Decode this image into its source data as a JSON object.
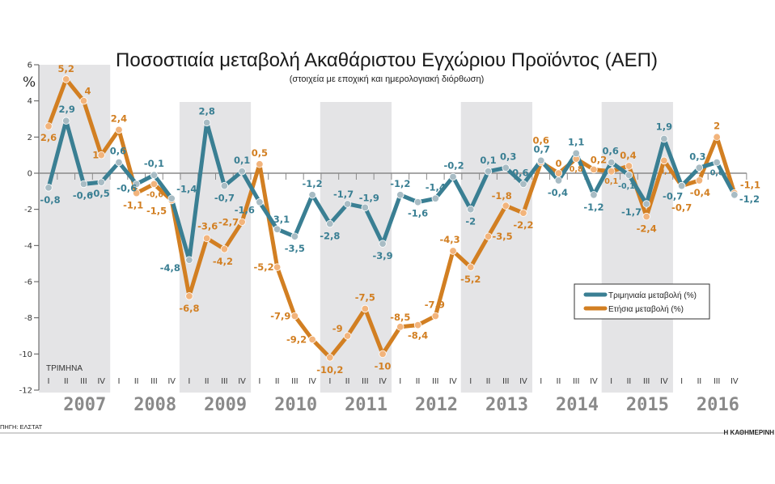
{
  "chart_data": {
    "type": "line",
    "title": "Ποσοστιαία μεταβολή Ακαθάριστου Εγχώριου Προϊόντος (ΑΕΠ)",
    "subtitle": "(στοιχεία με εποχική και ημερολογιακή διόρθωση)",
    "ylabel": "%",
    "ylim": [
      -12,
      6
    ],
    "yticks": [
      "6",
      "4",
      "2",
      "0",
      "-2",
      "-4",
      "-6",
      "-8",
      "-10",
      "-12"
    ],
    "ytick_values": [
      6,
      4,
      2,
      0,
      -2,
      -4,
      -6,
      -8,
      -10,
      -12
    ],
    "quarter_axis_label": "ΤΡΙΜΗΝΑ",
    "quarter_labels": [
      "I",
      "II",
      "III",
      "IV"
    ],
    "years": [
      "2007",
      "2008",
      "2009",
      "2010",
      "2011",
      "2012",
      "2013",
      "2014",
      "2015",
      "2016"
    ],
    "shaded_years": [
      "2007",
      "2009",
      "2011",
      "2013",
      "2015"
    ],
    "legend_position": "right",
    "series": [
      {
        "name": "Τριμηνιαία μεταβολή (%)",
        "color": "#3a7f93",
        "marker_color": "#a8bcc4",
        "values": [
          -0.8,
          2.9,
          -0.6,
          -0.5,
          0.6,
          -0.6,
          -0.1,
          -1.4,
          -4.8,
          2.8,
          -0.7,
          0.1,
          -1.6,
          -3.1,
          -3.5,
          -1.2,
          -2.8,
          -1.7,
          -1.9,
          -3.9,
          -1.2,
          -1.6,
          -1.4,
          -0.2,
          -2,
          0.1,
          0.3,
          -0.6,
          0.7,
          -0.4,
          1.1,
          -1.2,
          0.6,
          -0.1,
          -1.7,
          1.9,
          -0.7,
          0.3,
          0.6,
          -1.2
        ],
        "labels": [
          "-0,8",
          "2,9",
          "-0,6",
          "-0,5",
          "0,6",
          "-0,6",
          "-0,1",
          "-1,4",
          "-4,8",
          "2,8",
          "-0,7",
          "0,1",
          "-1,6",
          "-3,1",
          "-3,5",
          "-1,2",
          "-2,8",
          "-1,7",
          "-1,9",
          "-3,9",
          "-1,2",
          "-1,6",
          "-1,4",
          "-0,2",
          "-2",
          "0,1",
          "0,3",
          "-0,6",
          "0,7",
          "-0,4",
          "1,1",
          "-1,2",
          "0,6",
          "-0,1",
          "-1,7",
          "1,9",
          "-0,7",
          "0,3",
          "0,6",
          "-1,2"
        ]
      },
      {
        "name": "Ετήσια μεταβολή (%)",
        "color": "#d27f22",
        "marker_color": "#f2b47c",
        "values": [
          2.6,
          5.2,
          4,
          1,
          2.4,
          -1.1,
          -0.6,
          -1.5,
          -6.8,
          -3.6,
          -4.2,
          -2.7,
          0.5,
          -5.2,
          -7.9,
          -9.2,
          -10.2,
          -9,
          -7.5,
          -10,
          -8.5,
          -8.4,
          -7.9,
          -4.3,
          -5.2,
          -3.5,
          -1.8,
          -2.2,
          0.6,
          0,
          0.8,
          0.2,
          0.1,
          0.4,
          -2.4,
          0.7,
          -0.7,
          -0.4,
          2,
          -1.1
        ],
        "labels": [
          "2,6",
          "5,2",
          "4",
          "1",
          "2,4",
          "-1,1",
          "-0,6",
          "-1,5",
          "-6,8",
          "-3,6",
          "-4,2",
          "-2,7",
          "0,5",
          "-5,2",
          "-7,9",
          "-9,2",
          "-10,2",
          "-9",
          "-7,5",
          "-10",
          "-8,5",
          "-8,4",
          "-7,9",
          "-4,3",
          "-5,2",
          "-3,5",
          "-1,8",
          "-2,2",
          "0,6",
          "0",
          "0,8",
          "0,2",
          "0,1",
          "0,4",
          "-2,4",
          "0,7",
          "-0,7",
          "-0,4",
          "2",
          "-1,1"
        ]
      }
    ]
  },
  "footer": {
    "source": "ΠΗΓΗ: ΕΛΣΤΑΤ",
    "publisher": "Η ΚΑΘΗΜΕΡΙΝΗ"
  }
}
